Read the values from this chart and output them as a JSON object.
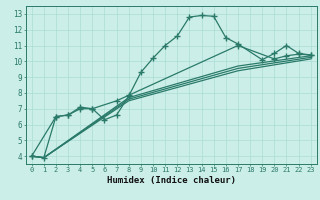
{
  "xlabel": "Humidex (Indice chaleur)",
  "ylabel": "",
  "bg_color": "#cceee8",
  "line_color": "#2a7a6a",
  "grid_color": "#aaddd6",
  "xlim": [
    -0.5,
    23.5
  ],
  "ylim": [
    3.5,
    13.5
  ],
  "xticks": [
    0,
    1,
    2,
    3,
    4,
    5,
    6,
    7,
    8,
    9,
    10,
    11,
    12,
    13,
    14,
    15,
    16,
    17,
    18,
    19,
    20,
    21,
    22,
    23
  ],
  "yticks": [
    4,
    5,
    6,
    7,
    8,
    9,
    10,
    11,
    12,
    13
  ],
  "lines": [
    {
      "x": [
        0,
        1,
        2,
        3,
        4,
        5,
        6,
        7,
        8,
        9,
        10,
        11,
        12,
        13,
        14,
        15,
        16,
        17,
        19,
        20,
        21,
        22,
        23
      ],
      "y": [
        4.0,
        3.9,
        6.5,
        6.6,
        7.0,
        7.0,
        6.3,
        6.6,
        7.8,
        9.3,
        10.2,
        11.0,
        11.6,
        12.8,
        12.9,
        12.85,
        11.5,
        11.1,
        10.1,
        10.5,
        11.0,
        10.5,
        10.4
      ],
      "marker": "+",
      "markersize": 4,
      "linewidth": 0.9
    },
    {
      "x": [
        0,
        2,
        3,
        4,
        5,
        7,
        8,
        17,
        20,
        21,
        22,
        23
      ],
      "y": [
        4.0,
        6.5,
        6.6,
        7.1,
        7.0,
        7.5,
        7.85,
        11.0,
        10.15,
        10.35,
        10.45,
        10.4
      ],
      "marker": "+",
      "markersize": 4,
      "linewidth": 0.9
    },
    {
      "x": [
        0,
        1,
        8,
        17,
        23
      ],
      "y": [
        4.0,
        3.9,
        7.7,
        9.7,
        10.35
      ],
      "marker": null,
      "markersize": 0,
      "linewidth": 0.9
    },
    {
      "x": [
        0,
        1,
        8,
        17,
        23
      ],
      "y": [
        4.0,
        3.9,
        7.6,
        9.55,
        10.25
      ],
      "marker": null,
      "markersize": 0,
      "linewidth": 0.9
    },
    {
      "x": [
        0,
        1,
        8,
        17,
        23
      ],
      "y": [
        4.0,
        3.9,
        7.5,
        9.4,
        10.15
      ],
      "marker": null,
      "markersize": 0,
      "linewidth": 0.9
    }
  ]
}
